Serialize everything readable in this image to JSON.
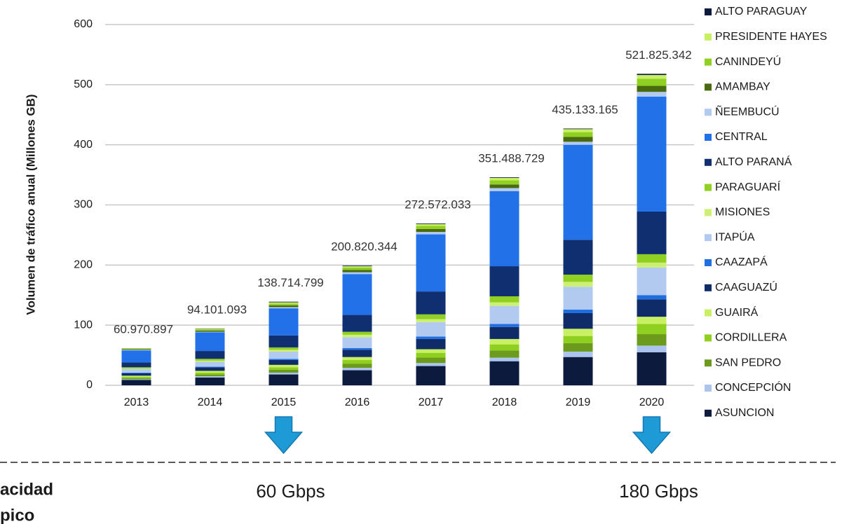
{
  "chart_data": {
    "type": "stacked_bar",
    "y_label": "Volumen de tráfico anual (Millones GB)",
    "categories": [
      "2013",
      "2014",
      "2015",
      "2016",
      "2017",
      "2018",
      "2019",
      "2020"
    ],
    "total_labels": [
      "60.970.897",
      "94.101.093",
      "138.714.799",
      "200.820.344",
      "272.572.033",
      "351.488.729",
      "435.133.165",
      "521.825.342"
    ],
    "ylim": [
      0,
      600
    ],
    "yticks": [
      0,
      100,
      200,
      300,
      400,
      500,
      600
    ],
    "grid": true,
    "legend": "right",
    "series": [
      {
        "name": "ASUNCION",
        "color": "#0b1a3d",
        "values": [
          9,
          13,
          18,
          25,
          32,
          40,
          47,
          55
        ]
      },
      {
        "name": "CONCEPCIÓN",
        "color": "#aac4ee",
        "values": [
          1,
          2,
          3,
          4,
          5,
          6,
          9,
          11
        ]
      },
      {
        "name": "SAN PEDRO",
        "color": "#6b9a1c",
        "values": [
          2,
          3,
          5,
          7,
          9,
          12,
          14,
          19
        ]
      },
      {
        "name": "CORDILLERA",
        "color": "#8fcf20",
        "values": [
          2,
          3,
          4,
          6,
          8,
          10,
          12,
          17
        ]
      },
      {
        "name": "GUAIRÁ",
        "color": "#c8f062",
        "values": [
          2,
          3,
          4,
          5,
          6,
          9,
          12,
          12
        ]
      },
      {
        "name": "CAAGUAZÚ",
        "color": "#0f2c68",
        "values": [
          4,
          6,
          8,
          12,
          17,
          20,
          26,
          29
        ]
      },
      {
        "name": "CAAZAPÁ",
        "color": "#1f6fe0",
        "values": [
          1,
          1,
          2,
          3,
          4,
          5,
          6,
          7
        ]
      },
      {
        "name": "ITAPÚA",
        "color": "#b2c9f0",
        "values": [
          6,
          8,
          12,
          18,
          24,
          30,
          38,
          46
        ]
      },
      {
        "name": "MISIONES",
        "color": "#cdf072",
        "values": [
          1,
          2,
          3,
          4,
          5,
          6,
          8,
          8
        ]
      },
      {
        "name": "PARAGUARÍ",
        "color": "#90d022",
        "values": [
          2,
          3,
          4,
          5,
          8,
          10,
          12,
          14
        ]
      },
      {
        "name": "ALTO PARANÁ",
        "color": "#102f70",
        "values": [
          8,
          13,
          20,
          28,
          38,
          50,
          58,
          71
        ]
      },
      {
        "name": "CENTRAL",
        "color": "#2271e8",
        "values": [
          20,
          31,
          45,
          68,
          95,
          125,
          158,
          191
        ]
      },
      {
        "name": "ÑEEMBUCÚ",
        "color": "#b2c9f0",
        "values": [
          1,
          1,
          2,
          3,
          4,
          5,
          5,
          8
        ]
      },
      {
        "name": "AMAMBAY",
        "color": "#4a6a12",
        "values": [
          1,
          2,
          3,
          4,
          5,
          6,
          8,
          10
        ]
      },
      {
        "name": "CANINDEYÚ",
        "color": "#8fd022",
        "values": [
          1,
          2,
          3,
          4,
          5,
          7,
          8,
          12
        ]
      },
      {
        "name": "PRESIDENTE HAYES",
        "color": "#c8f062",
        "values": [
          0.5,
          1,
          2,
          2,
          3,
          4,
          5,
          6
        ]
      },
      {
        "name": "ALTO PARAGUAY",
        "color": "#0b1a3d",
        "values": [
          0.2,
          0.5,
          1,
          1,
          1,
          1,
          1,
          2
        ]
      }
    ]
  },
  "capacity": {
    "heading_lines": [
      "acidad",
      "pico"
    ],
    "items": [
      {
        "category": "2015",
        "label": "60 Gbps"
      },
      {
        "category": "2020",
        "label": "180 Gbps"
      }
    ]
  }
}
